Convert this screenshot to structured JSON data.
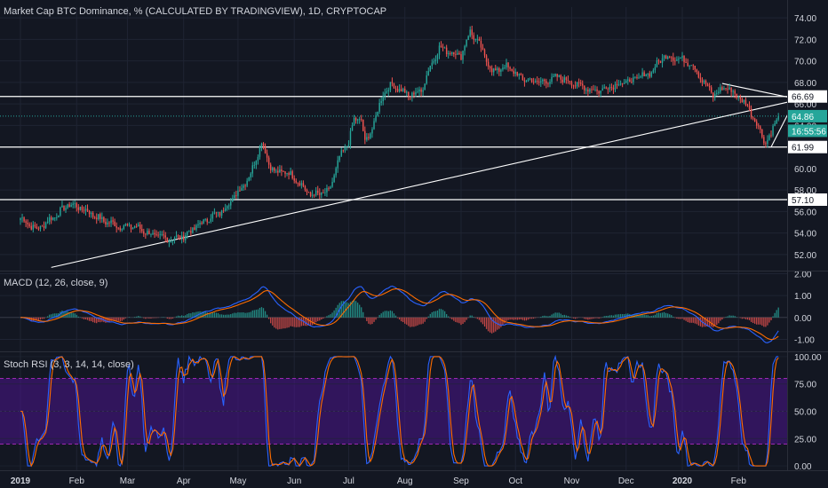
{
  "colors": {
    "background": "#131722",
    "grid": "#1f2433",
    "text": "#d1d4dc",
    "up": "#26a69a",
    "down": "#ef5350",
    "macd_line": "#2962ff",
    "signal_line": "#ff6d00",
    "stoch_k": "#2962ff",
    "stoch_d": "#ff6d00",
    "stoch_band": "#4a148c",
    "hline": "#ffffff",
    "last_price": "#26a69a"
  },
  "chart_data": [
    {
      "type": "candlestick",
      "title": "Market Cap BTC Dominance, % (CALCULATED BY TRADINGVIEW), 1D, CRYPTOCAP",
      "x_tick_labels": [
        "2019",
        "Feb",
        "Mar",
        "Apr",
        "May",
        "Jun",
        "Jul",
        "Aug",
        "Sep",
        "Oct",
        "Nov",
        "Dec",
        "2020",
        "Feb"
      ],
      "y_tick_labels": [
        "52.00",
        "54.00",
        "56.00",
        "58.00",
        "60.00",
        "62.00",
        "64.00",
        "66.00",
        "68.00",
        "70.00",
        "72.00",
        "74.00"
      ],
      "ylim": [
        50.5,
        75.0
      ],
      "price_labels": [
        {
          "text": "66.69",
          "value": 66.69,
          "style": "white"
        },
        {
          "text": "64.86",
          "value": 64.86,
          "style": "last"
        },
        {
          "text": "16:55:56",
          "value": 63.5,
          "style": "last"
        },
        {
          "text": "61.99",
          "value": 61.99,
          "style": "white"
        },
        {
          "text": "57.10",
          "value": 57.1,
          "style": "white"
        }
      ],
      "horizontal_levels": [
        66.69,
        61.99,
        57.1
      ],
      "last_price": 64.86,
      "trendlines": [
        {
          "from": [
            "2019-01-18",
            50.8
          ],
          "to": [
            "2020-02-29",
            66.2
          ]
        },
        {
          "from": [
            "2020-01-23",
            67.9
          ],
          "to": [
            "2020-02-29",
            66.6
          ]
        },
        {
          "from": [
            "2020-02-19",
            62.0
          ],
          "to": [
            "2020-02-29",
            65.3
          ]
        }
      ],
      "close_anchors": [
        [
          "2019-01-01",
          55.4
        ],
        [
          "2019-01-10",
          54.3
        ],
        [
          "2019-01-20",
          55.6
        ],
        [
          "2019-01-28",
          56.7
        ],
        [
          "2019-02-05",
          56.2
        ],
        [
          "2019-02-15",
          55.2
        ],
        [
          "2019-02-25",
          54.6
        ],
        [
          "2019-03-05",
          54.6
        ],
        [
          "2019-03-15",
          53.8
        ],
        [
          "2019-03-25",
          53.4
        ],
        [
          "2019-04-01",
          53.7
        ],
        [
          "2019-04-08",
          54.6
        ],
        [
          "2019-04-15",
          55.4
        ],
        [
          "2019-04-22",
          56.0
        ],
        [
          "2019-05-01",
          57.8
        ],
        [
          "2019-05-08",
          59.5
        ],
        [
          "2019-05-14",
          62.5
        ],
        [
          "2019-05-18",
          60.5
        ],
        [
          "2019-05-22",
          59.5
        ],
        [
          "2019-05-26",
          59.8
        ],
        [
          "2019-06-01",
          59.2
        ],
        [
          "2019-06-10",
          57.5
        ],
        [
          "2019-06-20",
          57.8
        ],
        [
          "2019-06-26",
          61.0
        ],
        [
          "2019-07-01",
          62.5
        ],
        [
          "2019-07-04",
          64.5
        ],
        [
          "2019-07-08",
          64.6
        ],
        [
          "2019-07-10",
          62.3
        ],
        [
          "2019-07-15",
          64.2
        ],
        [
          "2019-07-20",
          67.0
        ],
        [
          "2019-07-25",
          67.8
        ],
        [
          "2019-08-03",
          66.8
        ],
        [
          "2019-08-10",
          67.2
        ],
        [
          "2019-08-15",
          69.5
        ],
        [
          "2019-08-20",
          71.2
        ],
        [
          "2019-09-01",
          70.5
        ],
        [
          "2019-09-06",
          72.8
        ],
        [
          "2019-09-12",
          71.2
        ],
        [
          "2019-09-18",
          69.0
        ],
        [
          "2019-09-26",
          69.5
        ],
        [
          "2019-10-05",
          68.3
        ],
        [
          "2019-10-15",
          68.0
        ],
        [
          "2019-10-25",
          68.5
        ],
        [
          "2019-11-05",
          67.7
        ],
        [
          "2019-11-15",
          67.2
        ],
        [
          "2019-11-25",
          67.8
        ],
        [
          "2019-12-05",
          68.2
        ],
        [
          "2019-12-15",
          69.0
        ],
        [
          "2019-12-22",
          70.5
        ],
        [
          "2019-12-30",
          70.2
        ],
        [
          "2020-01-06",
          69.8
        ],
        [
          "2020-01-12",
          68.2
        ],
        [
          "2020-01-18",
          66.8
        ],
        [
          "2020-01-25",
          67.6
        ],
        [
          "2020-01-31",
          66.8
        ],
        [
          "2020-02-06",
          65.8
        ],
        [
          "2020-02-12",
          63.8
        ],
        [
          "2020-02-16",
          62.4
        ],
        [
          "2020-02-19",
          63.2
        ],
        [
          "2020-02-21",
          64.3
        ],
        [
          "2020-02-23",
          64.86
        ]
      ]
    },
    {
      "type": "line",
      "title": "MACD (12, 26, close, 9)",
      "y_tick_labels": [
        "2.00",
        "1.00",
        "0.00",
        "-1.00"
      ],
      "ylim": [
        -1.55,
        2.1
      ],
      "series": [
        {
          "name": "",
          "color_key": "macd_line"
        },
        {
          "name": "",
          "color_key": "signal_line"
        },
        {
          "name": "",
          "style": "histogram"
        }
      ]
    },
    {
      "type": "line",
      "title": "Stoch RSI (3, 3, 14, 14, close)",
      "y_tick_labels": [
        "100.00",
        "75.00",
        "50.00",
        "25.00",
        "0.00"
      ],
      "ylim": [
        -4,
        104
      ],
      "band": [
        20,
        80
      ],
      "series": [
        {
          "name": "",
          "color_key": "stoch_k"
        },
        {
          "name": "",
          "color_key": "stoch_d"
        }
      ]
    }
  ]
}
